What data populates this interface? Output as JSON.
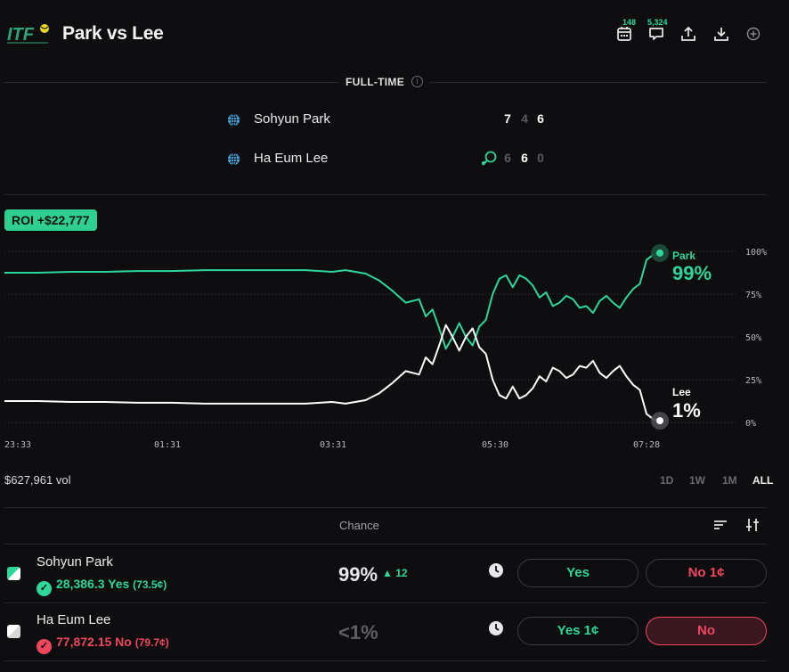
{
  "header": {
    "logo_text": "ITF",
    "title": "Park vs Lee",
    "calendar_count": "148",
    "comments_count": "5,324",
    "icons": [
      "calendar-icon",
      "comment-icon",
      "share-icon",
      "download-icon",
      "add-circle-icon"
    ]
  },
  "match": {
    "status": "FULL-TIME",
    "players": [
      {
        "name": "Sohyun Park",
        "sets": [
          "7",
          "4",
          "6"
        ],
        "won_sets": [
          true,
          false,
          true
        ],
        "serving": false
      },
      {
        "name": "Ha Eum Lee",
        "sets": [
          "6",
          "6",
          "0"
        ],
        "won_sets": [
          false,
          true,
          false
        ],
        "serving": true
      }
    ]
  },
  "roi_label": "ROI +$22,777",
  "chart_data": {
    "type": "line",
    "x_ticks": [
      "23:33",
      "01:31",
      "03:31",
      "05:30",
      "07:28"
    ],
    "y_ticks": [
      "100%",
      "75%",
      "50%",
      "25%",
      "0%"
    ],
    "ylim": [
      0,
      100
    ],
    "grid": true,
    "series": [
      {
        "name": "Park",
        "end_label": "99%",
        "color": "#2ed69a",
        "points": [
          [
            0,
            87.5
          ],
          [
            5,
            87.5
          ],
          [
            10,
            88
          ],
          [
            15,
            88
          ],
          [
            20,
            88.5
          ],
          [
            25,
            88.5
          ],
          [
            30,
            89
          ],
          [
            35,
            89
          ],
          [
            40,
            89
          ],
          [
            45,
            89
          ],
          [
            49,
            88
          ],
          [
            51,
            89
          ],
          [
            54,
            87
          ],
          [
            56,
            83
          ],
          [
            58,
            77
          ],
          [
            60,
            70
          ],
          [
            62,
            72
          ],
          [
            63,
            62
          ],
          [
            64,
            66
          ],
          [
            65,
            55
          ],
          [
            66,
            43
          ],
          [
            67,
            50
          ],
          [
            68,
            58
          ],
          [
            69,
            50
          ],
          [
            70,
            45
          ],
          [
            71,
            56
          ],
          [
            72,
            60
          ],
          [
            73,
            75
          ],
          [
            74,
            84
          ],
          [
            75,
            86
          ],
          [
            76,
            79
          ],
          [
            77,
            86
          ],
          [
            78,
            84
          ],
          [
            79,
            80
          ],
          [
            80,
            73
          ],
          [
            81,
            76
          ],
          [
            82,
            68
          ],
          [
            83,
            70
          ],
          [
            84,
            74
          ],
          [
            85,
            72
          ],
          [
            86,
            67
          ],
          [
            87,
            68
          ],
          [
            88,
            64
          ],
          [
            89,
            71
          ],
          [
            90,
            74
          ],
          [
            91,
            70
          ],
          [
            92,
            67
          ],
          [
            93,
            73
          ],
          [
            94,
            78
          ],
          [
            95,
            81
          ],
          [
            96,
            95
          ],
          [
            97,
            98
          ],
          [
            98,
            99
          ]
        ]
      },
      {
        "name": "Lee",
        "end_label": "1%",
        "color": "#ffffff",
        "points": [
          [
            0,
            12.5
          ],
          [
            5,
            12.5
          ],
          [
            10,
            12
          ],
          [
            15,
            12
          ],
          [
            20,
            11.5
          ],
          [
            25,
            11.5
          ],
          [
            30,
            11
          ],
          [
            35,
            11
          ],
          [
            40,
            11
          ],
          [
            45,
            11
          ],
          [
            49,
            12
          ],
          [
            51,
            11
          ],
          [
            54,
            13
          ],
          [
            56,
            17
          ],
          [
            58,
            23
          ],
          [
            60,
            30
          ],
          [
            62,
            28
          ],
          [
            63,
            38
          ],
          [
            64,
            34
          ],
          [
            65,
            45
          ],
          [
            66,
            57
          ],
          [
            67,
            50
          ],
          [
            68,
            42
          ],
          [
            69,
            50
          ],
          [
            70,
            55
          ],
          [
            71,
            44
          ],
          [
            72,
            40
          ],
          [
            73,
            25
          ],
          [
            74,
            16
          ],
          [
            75,
            14
          ],
          [
            76,
            21
          ],
          [
            77,
            14
          ],
          [
            78,
            16
          ],
          [
            79,
            20
          ],
          [
            80,
            27
          ],
          [
            81,
            24
          ],
          [
            82,
            32
          ],
          [
            83,
            30
          ],
          [
            84,
            26
          ],
          [
            85,
            28
          ],
          [
            86,
            33
          ],
          [
            87,
            32
          ],
          [
            88,
            36
          ],
          [
            89,
            29
          ],
          [
            90,
            26
          ],
          [
            91,
            30
          ],
          [
            92,
            33
          ],
          [
            93,
            27
          ],
          [
            94,
            22
          ],
          [
            95,
            19
          ],
          [
            96,
            5
          ],
          [
            97,
            2
          ],
          [
            98,
            1
          ]
        ]
      }
    ]
  },
  "volume": "$627,961 vol",
  "time_ranges": [
    {
      "label": "1D",
      "active": false
    },
    {
      "label": "1W",
      "active": false
    },
    {
      "label": "1M",
      "active": false
    },
    {
      "label": "ALL",
      "active": true
    }
  ],
  "outcomes_header": {
    "chance": "Chance"
  },
  "outcomes": [
    {
      "name": "Sohyun Park",
      "position": "28,386.3 Yes",
      "position_price": "(73.5¢)",
      "position_color": "#2ed69a",
      "chance": "99%",
      "delta": "▲ 12",
      "yes_label": "Yes",
      "no_label": "No 1¢"
    },
    {
      "name": "Ha Eum Lee",
      "position": "77,872.15 No",
      "position_price": "(79.7¢)",
      "position_color": "#f0475f",
      "chance": "<1%",
      "delta": "",
      "yes_label": "Yes 1¢",
      "no_label": "No"
    }
  ]
}
